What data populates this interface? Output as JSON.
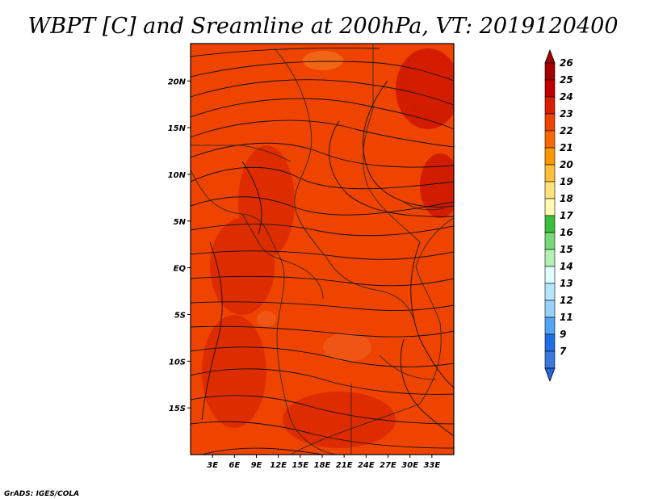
{
  "title": "WBPT [C] and Sreamline at 200hPa, VT: 2019120400",
  "credit": "GrADS: IGES/COLA",
  "map": {
    "field": "WBPT",
    "units": "C",
    "level": "200hPa",
    "overlay": "streamlines",
    "lon_range": [
      0,
      36
    ],
    "lat_range": [
      -20,
      24
    ],
    "fill_color": "#ee4400",
    "x_ticks": [
      {
        "value": 3,
        "label": "3E"
      },
      {
        "value": 6,
        "label": "6E"
      },
      {
        "value": 9,
        "label": "9E"
      },
      {
        "value": 12,
        "label": "12E"
      },
      {
        "value": 15,
        "label": "15E"
      },
      {
        "value": 18,
        "label": "18E"
      },
      {
        "value": 21,
        "label": "21E"
      },
      {
        "value": 24,
        "label": "24E"
      },
      {
        "value": 27,
        "label": "27E"
      },
      {
        "value": 30,
        "label": "30E"
      },
      {
        "value": 33,
        "label": "33E"
      }
    ],
    "y_ticks": [
      {
        "value": 20,
        "label": "20N"
      },
      {
        "value": 15,
        "label": "15N"
      },
      {
        "value": 10,
        "label": "10N"
      },
      {
        "value": 5,
        "label": "5N"
      },
      {
        "value": 0,
        "label": "EQ"
      },
      {
        "value": -5,
        "label": "5S"
      },
      {
        "value": -10,
        "label": "10S"
      },
      {
        "value": -15,
        "label": "15S"
      }
    ]
  },
  "colorbar": {
    "levels": [
      {
        "label": "26",
        "color": "#a50000"
      },
      {
        "label": "25",
        "color": "#c00000"
      },
      {
        "label": "24",
        "color": "#dc1e00"
      },
      {
        "label": "23",
        "color": "#ee4400"
      },
      {
        "label": "22",
        "color": "#f76a00"
      },
      {
        "label": "21",
        "color": "#fa9600"
      },
      {
        "label": "20",
        "color": "#ffbf3a"
      },
      {
        "label": "19",
        "color": "#ffe27a"
      },
      {
        "label": "18",
        "color": "#fffab4"
      },
      {
        "label": "17",
        "color": "#3cbe3c"
      },
      {
        "label": "16",
        "color": "#78d878"
      },
      {
        "label": "15",
        "color": "#b4f0b4"
      },
      {
        "label": "14",
        "color": "#e1ffff"
      },
      {
        "label": "13",
        "color": "#b4e6ff"
      },
      {
        "label": "12",
        "color": "#96d2fa"
      },
      {
        "label": "11",
        "color": "#50a5f5"
      },
      {
        "label": "9",
        "color": "#1e6ee6"
      },
      {
        "label": "7",
        "color": "#3c78dc"
      }
    ],
    "bottom_color": "#2864dc"
  }
}
